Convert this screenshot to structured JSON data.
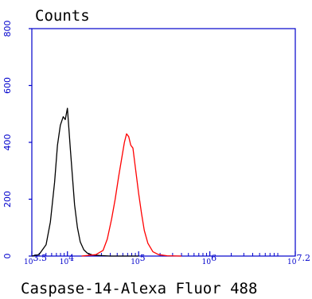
{
  "chart_data": {
    "type": "line",
    "ylabel": "Counts",
    "xlabel": "Caspase-14-Alexa Fluor 488",
    "x_scale": "log",
    "xlim": [
      3.5,
      7.2
    ],
    "ylim": [
      0,
      800
    ],
    "y_ticks": [
      "0",
      "200",
      "400",
      "600",
      "800"
    ],
    "x_ticks": [
      {
        "base": "10",
        "exp": "3.5",
        "value": 3.5
      },
      {
        "base": "10",
        "exp": "4",
        "value": 4
      },
      {
        "base": "10",
        "exp": "5",
        "value": 5
      },
      {
        "base": "10",
        "exp": "6",
        "value": 6
      },
      {
        "base": "10",
        "exp": "7.2",
        "value": 7.2
      }
    ],
    "colors": {
      "axis": "#0000cc",
      "series1": "#000000",
      "series2": "#ff0000"
    },
    "series": [
      {
        "color": "#000000",
        "x": [
          3.5,
          3.6,
          3.7,
          3.76,
          3.82,
          3.86,
          3.9,
          3.94,
          3.97,
          4.0,
          4.02,
          4.04,
          4.07,
          4.1,
          4.14,
          4.18,
          4.23,
          4.28,
          4.35,
          4.45,
          4.6,
          4.8,
          5.0
        ],
        "y": [
          0,
          5,
          40,
          120,
          260,
          390,
          460,
          490,
          480,
          520,
          450,
          380,
          280,
          180,
          100,
          50,
          22,
          10,
          4,
          2,
          0,
          0,
          0
        ]
      },
      {
        "color": "#ff0000",
        "x": [
          4.2,
          4.4,
          4.5,
          4.56,
          4.62,
          4.67,
          4.72,
          4.76,
          4.8,
          4.83,
          4.86,
          4.89,
          4.92,
          4.96,
          5.0,
          5.04,
          5.08,
          5.13,
          5.2,
          5.28,
          5.4,
          5.6
        ],
        "y": [
          0,
          5,
          20,
          60,
          130,
          200,
          280,
          340,
          400,
          430,
          420,
          390,
          380,
          300,
          220,
          150,
          90,
          45,
          15,
          5,
          1,
          0
        ]
      }
    ]
  }
}
